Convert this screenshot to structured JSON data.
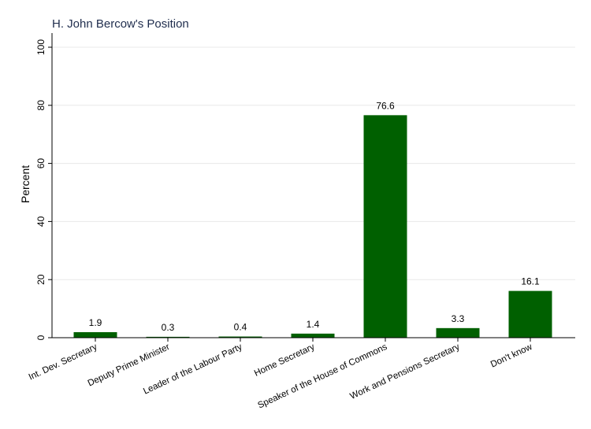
{
  "chart_data": {
    "type": "bar",
    "title": "H. John Bercow's Position",
    "ylabel": "Percent",
    "xlabel": "",
    "ylim": [
      0,
      100
    ],
    "yticks": [
      0,
      20,
      40,
      60,
      80,
      100
    ],
    "grid": true,
    "bar_color": "#006000",
    "categories": [
      "Int. Dev. Secretary",
      "Deputy Prime Minister",
      "Leader of the Labour Party",
      "Home Secretary",
      "Speaker of the House of Commons",
      "Work and Pensions Secretary",
      "Don't know"
    ],
    "values": [
      1.9,
      0.3,
      0.4,
      1.4,
      76.6,
      3.3,
      16.1
    ],
    "data_labels": [
      "1.9",
      "0.3",
      "0.4",
      "1.4",
      "76.6",
      "3.3",
      "16.1"
    ]
  }
}
